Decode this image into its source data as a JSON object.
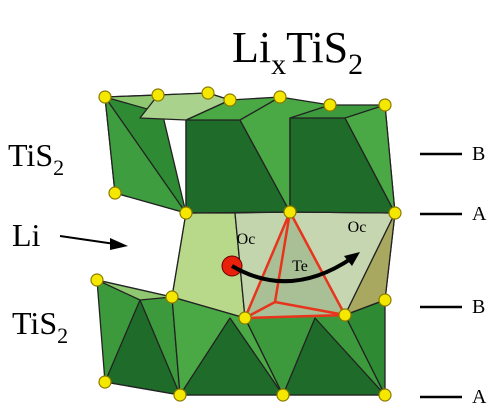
{
  "title": {
    "base": "Li",
    "sub": "x",
    "base2": "TiS",
    "sub2": "2"
  },
  "layers": [
    {
      "label": "TiS",
      "sub": "2"
    },
    {
      "label": "Li"
    },
    {
      "label": "TiS",
      "sub": "2"
    }
  ],
  "sites": [
    "Oc",
    "Oc",
    "Te"
  ],
  "stacking": [
    "B",
    "A",
    "B",
    "A"
  ]
}
